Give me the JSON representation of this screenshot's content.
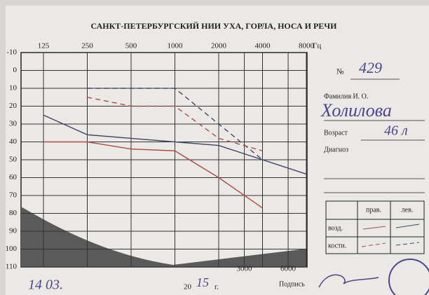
{
  "header": {
    "title": "САНКТ-ПЕТЕРБУРГСКИЙ НИИ УХА, ГОРЛА, НОСА И РЕЧИ"
  },
  "form": {
    "number_label": "№",
    "number": "429",
    "name_label": "Фамилия И. О.",
    "name": "Холилова",
    "age_label": "Возраст",
    "age": "46 л",
    "diagnosis_label": "Диагноз",
    "legend": {
      "right": "прав.",
      "left": "лев.",
      "air": "возд.",
      "bone": "кости."
    },
    "date_day": "14 03.",
    "date_year_prefix": "20",
    "date_year": "15",
    "date_year_suffix": "г.",
    "signature_label": "Подпись"
  },
  "chart_data": {
    "type": "line",
    "x_label": "Гц",
    "x": [
      125,
      250,
      500,
      1000,
      2000,
      4000,
      8000
    ],
    "xlim": [
      125,
      8000
    ],
    "xticks": [
      125,
      250,
      500,
      1000,
      2000,
      4000,
      8000
    ],
    "xticks_bottom": [
      3000,
      6000
    ],
    "log_x": true,
    "ylim": [
      -10,
      110
    ],
    "yticks": [
      -10,
      0,
      10,
      20,
      30,
      40,
      50,
      60,
      70,
      80,
      90,
      100,
      110
    ],
    "y_inverted": true,
    "grid": true,
    "series": [
      {
        "color": "#3b4866",
        "dash": false,
        "values": [
          25,
          36,
          38,
          40,
          42,
          50,
          58
        ]
      },
      {
        "color": "#b04a44",
        "dash": false,
        "values": [
          40,
          40,
          44,
          45,
          60,
          77,
          null
        ]
      },
      {
        "color": "#3b4866",
        "dash": true,
        "values": [
          null,
          10,
          10,
          10,
          30,
          50,
          null
        ]
      },
      {
        "color": "#b04a44",
        "dash": true,
        "values": [
          null,
          15,
          20,
          20,
          38,
          45,
          null
        ]
      }
    ]
  }
}
